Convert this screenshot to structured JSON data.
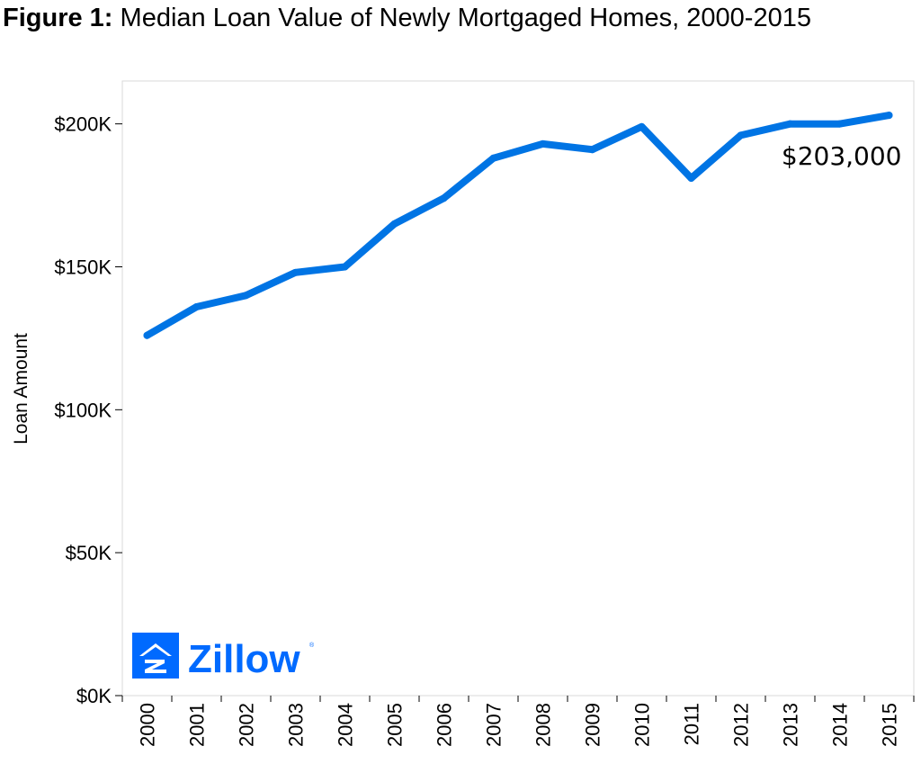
{
  "title_prefix": "Figure 1:",
  "title_text": "Median Loan Value of Newly Mortgaged Homes, 2000-2015",
  "logo_text": "Zillow",
  "colors": {
    "line": "#0074e4",
    "logo": "#006aff",
    "frame": "#d9d9d9"
  },
  "chart_data": {
    "type": "line",
    "title": "Median Loan Value of Newly Mortgaged Homes, 2000-2015",
    "xlabel": "",
    "ylabel": "Loan Amount",
    "x": [
      "2000",
      "2001",
      "2002",
      "2003",
      "2004",
      "2005",
      "2006",
      "2007",
      "2008",
      "2009",
      "2010",
      "2011",
      "2012",
      "2013",
      "2014",
      "2015"
    ],
    "series": [
      {
        "values": [
          126000,
          136000,
          140000,
          148000,
          150000,
          165000,
          174000,
          188000,
          193000,
          191000,
          199000,
          181000,
          196000,
          200000,
          200000,
          203000
        ]
      }
    ],
    "ylim": [
      0,
      215000
    ],
    "yticks": [
      0,
      50000,
      100000,
      150000,
      200000
    ],
    "ytick_labels": [
      "$0K",
      "$50K",
      "$100K",
      "$150K",
      "$200K"
    ],
    "annotations": [
      {
        "x": "2015",
        "text": "$203,000"
      }
    ],
    "grid": false,
    "legend": "none"
  }
}
